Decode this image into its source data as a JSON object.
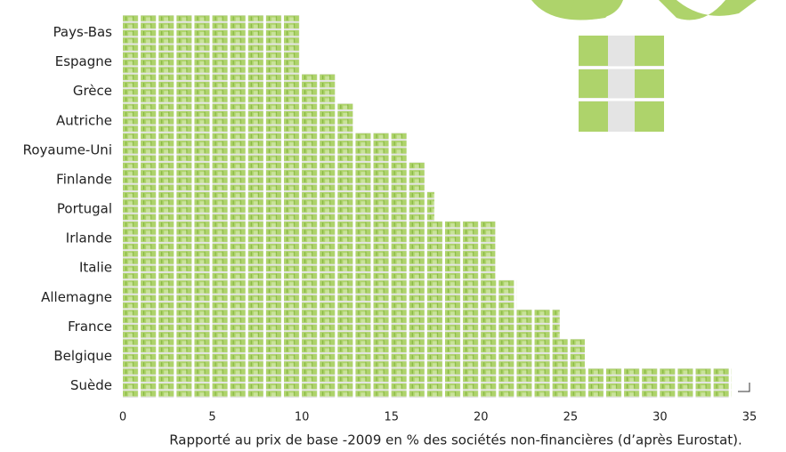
{
  "chart_data": {
    "type": "hbar",
    "categories": [
      "Pays-Bas",
      "Espagne",
      "Grèce",
      "Autriche",
      "Royaume-Uni",
      "Finlande",
      "Portugal",
      "Irlande",
      "Italie",
      "Allemagne",
      "France",
      "Belgique",
      "Suède"
    ],
    "values": [
      9.9,
      9.9,
      11.9,
      12.9,
      15.9,
      16.9,
      17.4,
      20.8,
      20.8,
      22,
      24.4,
      25.8,
      34
    ],
    "color": "#aed36b",
    "xlim": [
      0,
      35
    ],
    "xticks": [
      0,
      5,
      10,
      15,
      20,
      25,
      30,
      35
    ],
    "xlabel": "Rapporté au prix de base -2009 en % des sociétés non-financières (d’après Eurostat)."
  }
}
